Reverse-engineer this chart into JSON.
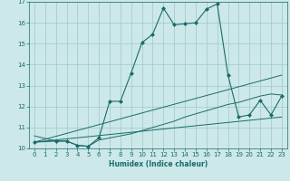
{
  "xlabel": "Humidex (Indice chaleur)",
  "xlim": [
    -0.5,
    23.5
  ],
  "ylim": [
    10,
    17
  ],
  "xticks": [
    0,
    1,
    2,
    3,
    4,
    5,
    6,
    7,
    8,
    9,
    10,
    11,
    12,
    13,
    14,
    15,
    16,
    17,
    18,
    19,
    20,
    21,
    22,
    23
  ],
  "yticks": [
    10,
    11,
    12,
    13,
    14,
    15,
    16,
    17
  ],
  "bg_color": "#cce8e8",
  "grid_color": "#a0c8c8",
  "line_color": "#1a6b6b",
  "lines": [
    {
      "x": [
        0,
        2,
        3,
        4,
        5,
        6,
        7,
        8,
        9,
        10,
        11,
        12,
        13,
        14,
        15,
        16,
        17,
        18,
        19,
        20,
        21,
        22,
        23
      ],
      "y": [
        10.3,
        10.35,
        10.35,
        10.15,
        10.1,
        10.5,
        12.25,
        12.25,
        13.6,
        15.05,
        15.45,
        16.7,
        15.9,
        15.95,
        16.0,
        16.65,
        16.9,
        13.5,
        11.5,
        11.6,
        12.3,
        11.6,
        12.5
      ],
      "marker": "D",
      "markersize": 2.0,
      "linewidth": 0.8
    },
    {
      "x": [
        0,
        2,
        3,
        4,
        5,
        6,
        7,
        8,
        9,
        10,
        11,
        12,
        13,
        14,
        15,
        16,
        17,
        18,
        19,
        20,
        21,
        22,
        23
      ],
      "y": [
        10.6,
        10.35,
        10.35,
        10.15,
        10.1,
        10.4,
        10.5,
        10.6,
        10.7,
        10.85,
        11.0,
        11.15,
        11.3,
        11.5,
        11.65,
        11.8,
        11.95,
        12.1,
        12.2,
        12.35,
        12.5,
        12.6,
        12.55
      ],
      "marker": null,
      "markersize": 0,
      "linewidth": 0.7
    },
    {
      "x": [
        0,
        23
      ],
      "y": [
        10.3,
        13.5
      ],
      "marker": null,
      "markersize": 0,
      "linewidth": 0.7
    },
    {
      "x": [
        0,
        23
      ],
      "y": [
        10.3,
        11.5
      ],
      "marker": null,
      "markersize": 0,
      "linewidth": 0.7
    }
  ]
}
